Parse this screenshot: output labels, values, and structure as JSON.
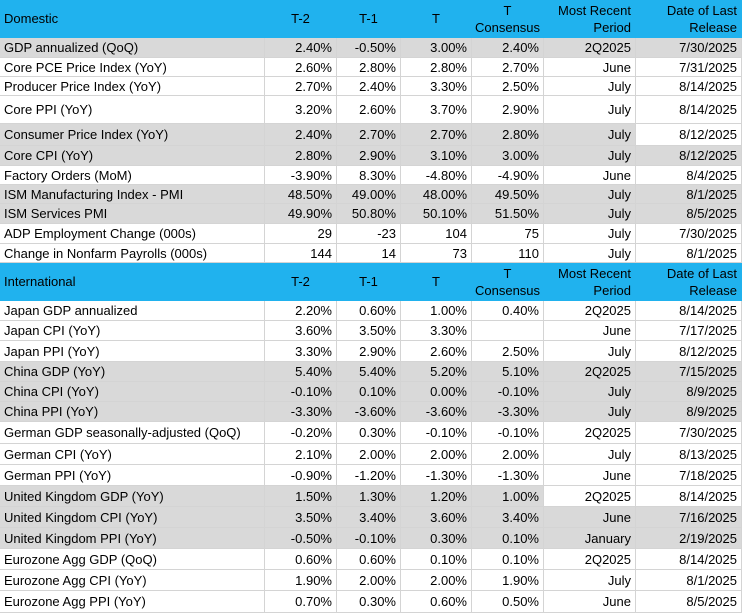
{
  "sections": [
    {
      "header": [
        "Domestic",
        "T-2",
        "T-1",
        "T",
        "T\nConsensus",
        "Most Recent\nPeriod",
        "Date of Last\nRelease"
      ],
      "rows": [
        [
          "GDP annualized (QoQ)",
          "2.40%",
          "-0.50%",
          "3.00%",
          "2.40%",
          "2Q2025",
          "7/30/2025"
        ],
        [
          "Core PCE Price Index (YoY)",
          "2.60%",
          "2.80%",
          "2.80%",
          "2.70%",
          "June",
          "7/31/2025"
        ],
        [
          "Producer Price Index (YoY)",
          "2.70%",
          "2.40%",
          "3.30%",
          "2.50%",
          "July",
          "8/14/2025"
        ],
        [
          "Core PPI (YoY)",
          "3.20%",
          "2.60%",
          "3.70%",
          "2.90%",
          "July",
          "8/14/2025"
        ],
        [
          "Consumer Price Index (YoY)",
          "2.40%",
          "2.70%",
          "2.70%",
          "2.80%",
          "July",
          "8/12/2025"
        ],
        [
          "Core CPI  (YoY)",
          "2.80%",
          "2.90%",
          "3.10%",
          "3.00%",
          "July",
          "8/12/2025"
        ],
        [
          "Factory Orders (MoM)",
          "-3.90%",
          "8.30%",
          "-4.80%",
          "-4.90%",
          "June",
          "8/4/2025"
        ],
        [
          "ISM Manufacturing Index - PMI",
          "48.50%",
          "49.00%",
          "48.00%",
          "49.50%",
          "July",
          "8/1/2025"
        ],
        [
          "ISM Services PMI",
          "49.90%",
          "50.80%",
          "50.10%",
          "51.50%",
          "July",
          "8/5/2025"
        ],
        [
          "ADP Employment Change (000s)",
          "29",
          "-23",
          "104",
          "75",
          "July",
          "7/30/2025"
        ],
        [
          "Change in Nonfarm Payrolls (000s)",
          "144",
          "14",
          "73",
          "110",
          "July",
          "8/1/2025"
        ]
      ]
    },
    {
      "header": [
        "International",
        "T-2",
        "T-1",
        "T",
        "T\nConsensus",
        "Most Recent\nPeriod",
        "Date of Last\nRelease"
      ],
      "rows": [
        [
          "Japan GDP annualized",
          "2.20%",
          "0.60%",
          "1.00%",
          "0.40%",
          "2Q2025",
          "8/14/2025"
        ],
        [
          "Japan CPI (YoY)",
          "3.60%",
          "3.50%",
          "3.30%",
          null,
          "June",
          "7/17/2025"
        ],
        [
          "Japan PPI (YoY)",
          "3.30%",
          "2.90%",
          "2.60%",
          "2.50%",
          "July",
          "8/12/2025"
        ],
        [
          "China GDP (YoY)",
          "5.40%",
          "5.40%",
          "5.20%",
          "5.10%",
          "2Q2025",
          "7/15/2025"
        ],
        [
          "China CPI (YoY)",
          "-0.10%",
          "0.10%",
          "0.00%",
          "-0.10%",
          "July",
          "8/9/2025"
        ],
        [
          "China PPI (YoY)",
          "-3.30%",
          "-3.60%",
          "-3.60%",
          "-3.30%",
          "July",
          "8/9/2025"
        ],
        [
          "German GDP seasonally-adjusted (QoQ)",
          "-0.20%",
          "0.30%",
          "-0.10%",
          "-0.10%",
          "2Q2025",
          "7/30/2025"
        ],
        [
          "German CPI (YoY)",
          "2.10%",
          "2.00%",
          "2.00%",
          "2.00%",
          "July",
          "8/13/2025"
        ],
        [
          "German PPI (YoY)",
          "-0.90%",
          "-1.20%",
          "-1.30%",
          "-1.30%",
          "June",
          "7/18/2025"
        ],
        [
          "United Kingdom GDP (YoY)",
          "1.50%",
          "1.30%",
          "1.20%",
          "1.00%",
          "2Q2025",
          "8/14/2025"
        ],
        [
          "United Kingdom CPI (YoY)",
          "3.50%",
          "3.40%",
          "3.60%",
          "3.40%",
          "June",
          "7/16/2025"
        ],
        [
          "United Kingdom  PPI (YoY)",
          "-0.50%",
          "-0.10%",
          "0.30%",
          "0.10%",
          "January",
          "2/19/2025"
        ],
        [
          "Eurozone Agg GDP (QoQ)",
          "0.60%",
          "0.60%",
          "0.10%",
          "0.10%",
          "2Q2025",
          "8/14/2025"
        ],
        [
          "Eurozone Agg CPI (YoY)",
          "1.90%",
          "2.00%",
          "2.00%",
          "1.90%",
          "July",
          "8/1/2025"
        ],
        [
          "Eurozone Agg PPI (YoY)",
          "0.70%",
          "0.30%",
          "0.60%",
          "0.50%",
          "June",
          "8/5/2025"
        ]
      ]
    }
  ]
}
